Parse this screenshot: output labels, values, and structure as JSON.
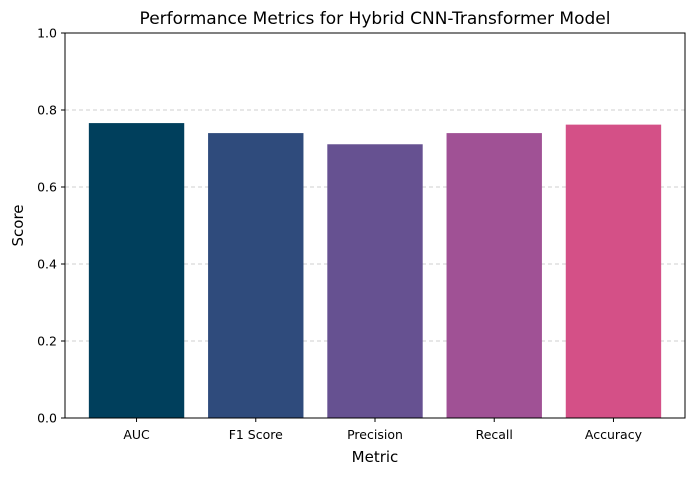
{
  "chart_data": {
    "type": "bar",
    "title": "Performance Metrics for Hybrid CNN-Transformer Model",
    "xlabel": "Metric",
    "ylabel": "Score",
    "categories": [
      "AUC",
      "F1 Score",
      "Precision",
      "Recall",
      "Accuracy"
    ],
    "values": [
      0.766,
      0.74,
      0.711,
      0.74,
      0.762
    ],
    "colors": [
      "#003f5c",
      "#2f4b7c",
      "#665191",
      "#a05195",
      "#d45087"
    ],
    "ylim": [
      0,
      1.0
    ],
    "yticks": [
      "0.0",
      "0.2",
      "0.4",
      "0.6",
      "0.8",
      "1.0"
    ],
    "grid": "y-axis dashed",
    "grid_color": "#c0c0c0",
    "legend": "none"
  }
}
